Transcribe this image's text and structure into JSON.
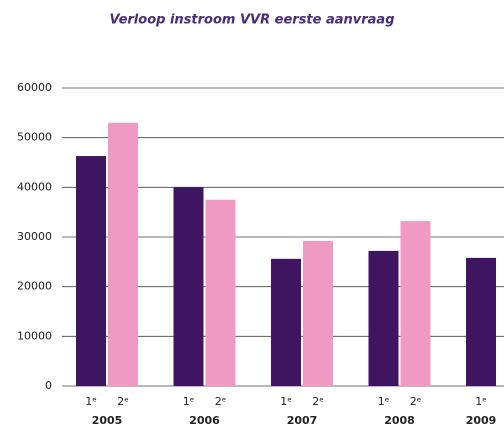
{
  "chart_data": {
    "type": "bar",
    "title": "Verloop instroom VVR eerste aanvraag",
    "categories": [
      "2005",
      "2006",
      "2007",
      "2008",
      "2009"
    ],
    "series": [
      {
        "name": "1ᵉ",
        "color": "#3f1460",
        "values": [
          46300,
          40000,
          25600,
          27200,
          25800
        ]
      },
      {
        "name": "2ᵉ",
        "color": "#f09ac3",
        "values": [
          53000,
          37500,
          29200,
          33200,
          null
        ]
      }
    ],
    "ylim": [
      0,
      60000
    ],
    "yticks": [
      0,
      10000,
      20000,
      30000,
      40000,
      50000,
      60000
    ],
    "grid": true
  }
}
